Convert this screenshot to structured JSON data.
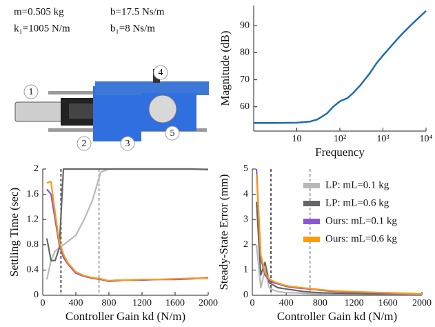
{
  "params": [
    "m=0.505 kg",
    "b=17.5 Ns/m",
    "k₁=1005 N/m",
    "b₁=8 Ns/m"
  ],
  "photo_labels": [
    "1",
    "2",
    "3",
    "4",
    "5"
  ],
  "chart_data": [
    {
      "type": "line",
      "xscale": "log",
      "xlabel": "Frequency",
      "ylabel": "Magnitude (dB)",
      "x": [
        1,
        3,
        10,
        20,
        30,
        50,
        70,
        100,
        150,
        200,
        300,
        500,
        700,
        1000,
        2000,
        3000,
        5000,
        10000
      ],
      "xlim": [
        1,
        10000
      ],
      "ylim": [
        51,
        97.5
      ],
      "xticks": [
        10,
        {
          "value": 100,
          "label": "10²"
        },
        {
          "value": 1000,
          "label": "10³"
        },
        {
          "value": 10000,
          "label": "10⁴"
        }
      ],
      "yticks": [
        60,
        70,
        80,
        90
      ],
      "series": [
        {
          "color": "#1f6cb0",
          "values": [
            54,
            54,
            54.1,
            54.5,
            55.3,
            57.5,
            60,
            62,
            63.2,
            65,
            68,
            72.5,
            76,
            79,
            84.5,
            87.5,
            91,
            95.5
          ]
        }
      ]
    },
    {
      "type": "line",
      "xlabel": "Controller Gain kd (N/m)",
      "ylabel": "Settling Time (sec)",
      "x": [
        50,
        100,
        150,
        200,
        250,
        300,
        400,
        500,
        600,
        700,
        800,
        900,
        1000,
        1200,
        1400,
        1600,
        1800,
        2000
      ],
      "xlim": [
        0,
        2000
      ],
      "ylim": [
        0,
        2
      ],
      "xticks": [
        0,
        400,
        800,
        1200,
        1600,
        2000
      ],
      "yticks": [
        0,
        0.4,
        0.8,
        1.2,
        1.6,
        2
      ],
      "vlines": [
        {
          "x": 220,
          "color": "#555555"
        },
        {
          "x": 680,
          "color": "#aaaaaa"
        }
      ],
      "series": [
        {
          "color": "#b8b8b8",
          "values": [
            0.25,
            0.55,
            0.7,
            0.75,
            0.8,
            0.85,
            0.95,
            1.2,
            1.5,
            1.95,
            2,
            2,
            2,
            2,
            2,
            2,
            2,
            2
          ]
        },
        {
          "color": "#666666",
          "values": [
            0.9,
            0.55,
            0.55,
            0.75,
            2,
            2,
            2,
            2,
            2,
            2,
            2,
            2,
            2,
            2,
            2,
            2,
            2,
            1.99
          ]
        },
        {
          "color": "#8a56d6",
          "values": [
            1.68,
            1.6,
            1.2,
            0.8,
            0.6,
            0.5,
            0.35,
            0.3,
            0.27,
            0.25,
            0.22,
            0.23,
            0.24,
            0.24,
            0.25,
            0.25,
            0.26,
            0.28
          ]
        },
        {
          "color": "#ff9a0a",
          "values": [
            1.78,
            1.8,
            1.3,
            0.85,
            0.65,
            0.52,
            0.37,
            0.31,
            0.28,
            0.26,
            0.23,
            0.24,
            0.24,
            0.25,
            0.25,
            0.26,
            0.27,
            0.27
          ]
        }
      ]
    },
    {
      "type": "line",
      "xlabel": "Controller Gain kd (N/m)",
      "ylabel": "Steady-State Error (mm)",
      "x": [
        50,
        100,
        150,
        200,
        250,
        300,
        400,
        500,
        600,
        700,
        800,
        900,
        1000,
        1200,
        1400,
        1600,
        1800,
        2000
      ],
      "xlim": [
        0,
        2000
      ],
      "ylim": [
        0,
        5
      ],
      "xticks": [
        0,
        400,
        800,
        1200,
        1600,
        2000
      ],
      "yticks": [
        0,
        1,
        2,
        3,
        4,
        5
      ],
      "vlines": [
        {
          "x": 220,
          "color": "#555555"
        },
        {
          "x": 680,
          "color": "#aaaaaa"
        }
      ],
      "legend": "upper right",
      "series": [
        {
          "name": "LP: mL=0.1 kg",
          "color": "#b8b8b8",
          "values": [
            2,
            0.3,
            1,
            0.3,
            0.2,
            0.15,
            0.1,
            0.1,
            0.08,
            0.05,
            0.05,
            0.05,
            0.04,
            0.04,
            0.04,
            0.03,
            0.03,
            0.03
          ]
        },
        {
          "name": "LP: mL=0.6 kg",
          "color": "#666666",
          "values": [
            3.7,
            0.8,
            1.3,
            0.5,
            0.4,
            0.3,
            0.25,
            0.2,
            0.15,
            0.12,
            0.1,
            0.09,
            0.08,
            0.07,
            0.06,
            0.05,
            0.05,
            0.05
          ]
        },
        {
          "name": "Ours: mL=0.1 kg",
          "color": "#8a56d6",
          "values": [
            5,
            1.5,
            0.8,
            0.6,
            0.5,
            0.45,
            0.35,
            0.3,
            0.27,
            0.24,
            0.2,
            0.17,
            0.15,
            0.12,
            0.1,
            0.08,
            0.06,
            0.05
          ]
        },
        {
          "name": "Ours: mL=0.6 kg",
          "color": "#ff9a0a",
          "values": [
            4.8,
            1.6,
            0.9,
            0.65,
            0.55,
            0.48,
            0.38,
            0.33,
            0.29,
            0.26,
            0.22,
            0.19,
            0.17,
            0.14,
            0.12,
            0.1,
            0.08,
            0.06
          ]
        }
      ]
    }
  ]
}
